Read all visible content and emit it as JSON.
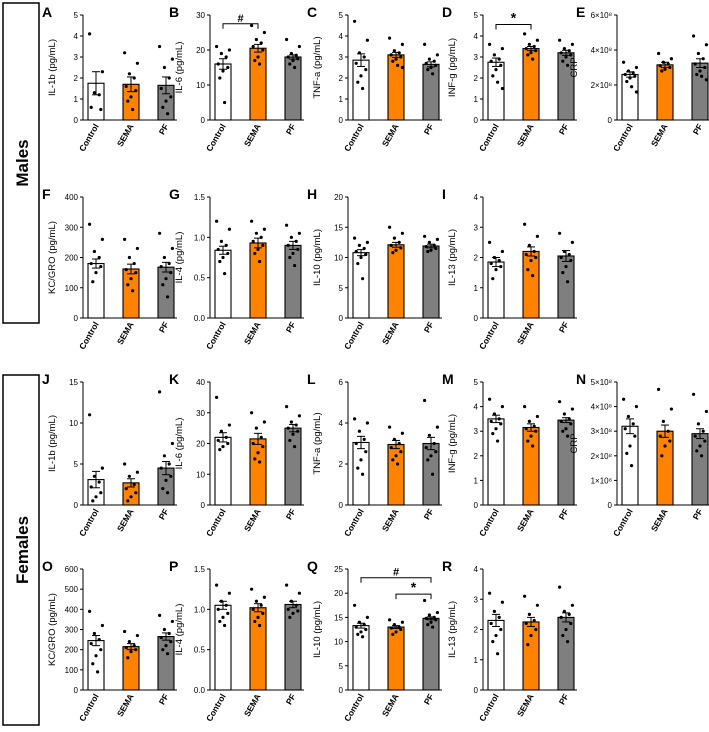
{
  "figure": {
    "groups": [
      {
        "label": "Males",
        "stroke": "#000000"
      },
      {
        "label": "Females",
        "stroke": "#000000"
      }
    ],
    "bar_colors": [
      "#ffffff",
      "#ff8200",
      "#7f7f7f"
    ]
  },
  "chart_data": [
    {
      "panel": "A",
      "type": "bar",
      "categories": [
        "Control",
        "SEMA",
        "PF"
      ],
      "values": [
        1.75,
        1.7,
        1.65
      ],
      "sem": [
        0.55,
        0.35,
        0.4
      ],
      "ylabel": "IL-1b (pg/mL)",
      "ylim": [
        0,
        5
      ],
      "yticks": [
        "0",
        "1",
        "2",
        "3",
        "4",
        "5"
      ],
      "points": [
        [
          4.1,
          2.3,
          1.3,
          1.2,
          0.6,
          0.5
        ],
        [
          3.2,
          2.7,
          2.2,
          2.0,
          1.6,
          1.4,
          1.1,
          0.9,
          0.5
        ],
        [
          3.5,
          2.9,
          2.5,
          2.0,
          1.5,
          1.1,
          0.9,
          0.6,
          0.3
        ]
      ]
    },
    {
      "panel": "B",
      "type": "bar",
      "categories": [
        "Control",
        "SEMA",
        "PF"
      ],
      "values": [
        16,
        20.5,
        18
      ],
      "sem": [
        1.5,
        1.1,
        0.6
      ],
      "ylabel": "IL-6 (pg/mL)",
      "ylim": [
        0,
        30
      ],
      "yticks": [
        "0",
        "10",
        "20",
        "30"
      ],
      "points": [
        [
          21,
          20,
          19,
          18,
          16,
          15,
          14,
          12,
          5
        ],
        [
          27,
          25,
          23,
          22,
          21,
          20,
          18,
          17,
          16
        ],
        [
          23,
          21,
          19,
          18.5,
          18,
          17.5,
          17,
          16,
          15
        ]
      ],
      "annotations": [
        {
          "text": "#",
          "from": 0,
          "to": 1,
          "y": 27.5
        }
      ]
    },
    {
      "panel": "C",
      "type": "bar",
      "categories": [
        "Control",
        "SEMA",
        "PF"
      ],
      "values": [
        2.85,
        3.1,
        2.65
      ],
      "sem": [
        0.3,
        0.12,
        0.12
      ],
      "ylabel": "TNF-a (pg/mL)",
      "ylim": [
        0,
        5
      ],
      "yticks": [
        "0",
        "1",
        "2",
        "3",
        "4",
        "5"
      ],
      "points": [
        [
          4.7,
          3.8,
          3.2,
          3.0,
          2.7,
          2.4,
          2.1,
          1.8,
          1.5
        ],
        [
          3.9,
          3.6,
          3.3,
          3.2,
          3.1,
          3.0,
          2.9,
          2.8,
          2.6,
          2.5
        ],
        [
          3.6,
          3.1,
          2.9,
          2.8,
          2.7,
          2.6,
          2.5,
          2.4,
          2.2
        ]
      ]
    },
    {
      "panel": "D",
      "type": "bar",
      "categories": [
        "Control",
        "SEMA",
        "PF"
      ],
      "values": [
        2.75,
        3.4,
        3.2
      ],
      "sem": [
        0.2,
        0.1,
        0.12
      ],
      "ylabel": "INF-g (pg/mL)",
      "ylim": [
        0,
        5
      ],
      "yticks": [
        "0",
        "1",
        "2",
        "3",
        "4",
        "5"
      ],
      "points": [
        [
          3.6,
          3.4,
          3.1,
          2.9,
          2.8,
          2.6,
          2.4,
          2.1,
          1.8,
          1.5
        ],
        [
          4.1,
          3.8,
          3.6,
          3.5,
          3.4,
          3.3,
          3.2,
          3.1,
          2.9
        ],
        [
          3.8,
          3.6,
          3.4,
          3.3,
          3.2,
          3.1,
          3.0,
          2.8,
          2.6
        ]
      ],
      "annotations": [
        {
          "text": "*",
          "from": 0,
          "to": 1,
          "y": 4.55
        }
      ]
    },
    {
      "panel": "E",
      "type": "bar",
      "categories": [
        "Control",
        "SEMA",
        "PF"
      ],
      "values": [
        260000000,
        315000000,
        325000000
      ],
      "sem": [
        15000000,
        15000000,
        25000000
      ],
      "ylabel": "CRP",
      "ylim": [
        0,
        600000000
      ],
      "yticks": [
        "0",
        "2×10⁸",
        "4×10⁸",
        "6×10⁸"
      ],
      "points": [
        [
          330000000,
          300000000,
          280000000,
          270000000,
          260000000,
          250000000,
          240000000,
          220000000,
          190000000,
          160000000
        ],
        [
          380000000,
          350000000,
          330000000,
          320000000,
          310000000,
          300000000,
          290000000,
          280000000
        ],
        [
          480000000,
          430000000,
          380000000,
          350000000,
          320000000,
          300000000,
          280000000,
          260000000,
          250000000,
          230000000
        ]
      ]
    },
    {
      "panel": "F",
      "type": "bar",
      "categories": [
        "Control",
        "SEMA",
        "PF"
      ],
      "values": [
        180,
        162,
        168
      ],
      "sem": [
        15,
        16,
        16
      ],
      "ylabel": "KC/GRO (pg/mL)",
      "ylim": [
        0,
        400
      ],
      "yticks": [
        "0",
        "100",
        "200",
        "300",
        "400"
      ],
      "points": [
        [
          310,
          260,
          220,
          200,
          180,
          170,
          150,
          120
        ],
        [
          260,
          230,
          200,
          180,
          160,
          150,
          130,
          110,
          90
        ],
        [
          280,
          230,
          200,
          180,
          170,
          150,
          130,
          110,
          70
        ]
      ]
    },
    {
      "panel": "G",
      "type": "bar",
      "categories": [
        "Control",
        "SEMA",
        "PF"
      ],
      "values": [
        0.84,
        0.93,
        0.9
      ],
      "sem": [
        0.05,
        0.06,
        0.05
      ],
      "ylabel": "IL-4 (pg/mL)",
      "ylim": [
        0,
        1.5
      ],
      "yticks": [
        "0.0",
        "0.5",
        "1.0",
        "1.5"
      ],
      "points": [
        [
          1.2,
          1.1,
          0.95,
          0.9,
          0.85,
          0.8,
          0.75,
          0.7,
          0.55
        ],
        [
          1.2,
          1.1,
          1.05,
          1.0,
          0.95,
          0.9,
          0.85,
          0.8,
          0.7
        ],
        [
          1.15,
          1.05,
          1.0,
          0.95,
          0.9,
          0.85,
          0.8,
          0.75,
          0.65
        ]
      ]
    },
    {
      "panel": "H",
      "type": "bar",
      "categories": [
        "Control",
        "SEMA",
        "PF"
      ],
      "values": [
        10.8,
        12.1,
        11.9
      ],
      "sem": [
        0.5,
        0.4,
        0.3
      ],
      "ylabel": "IL-10 (pg/mL)",
      "ylim": [
        0,
        20
      ],
      "yticks": [
        "0",
        "5",
        "10",
        "15",
        "20"
      ],
      "points": [
        [
          13.2,
          12.5,
          12.0,
          11.5,
          11.0,
          10.5,
          10.0,
          9.0,
          6.5
        ],
        [
          15.0,
          14.0,
          13.2,
          12.5,
          12.0,
          11.6,
          11.2,
          10.8
        ],
        [
          13.5,
          13.0,
          12.5,
          12.0,
          11.8,
          11.5,
          11.2,
          11.0
        ]
      ]
    },
    {
      "panel": "I",
      "type": "bar",
      "categories": [
        "Control",
        "SEMA",
        "PF"
      ],
      "values": [
        1.85,
        2.2,
        2.05
      ],
      "sem": [
        0.15,
        0.15,
        0.18
      ],
      "ylabel": "IL-13 (pg/mL)",
      "ylim": [
        0,
        4
      ],
      "yticks": [
        "0",
        "1",
        "2",
        "3",
        "4"
      ],
      "points": [
        [
          2.5,
          2.2,
          2.0,
          1.9,
          1.8,
          1.7,
          1.6,
          1.3
        ],
        [
          3.1,
          2.7,
          2.4,
          2.2,
          2.1,
          2.0,
          1.9,
          1.6,
          1.4
        ],
        [
          2.8,
          2.5,
          2.2,
          2.1,
          2.0,
          1.9,
          1.7,
          1.5,
          1.2
        ]
      ]
    },
    {
      "panel": "J",
      "type": "bar",
      "categories": [
        "Control",
        "SEMA",
        "PF"
      ],
      "values": [
        3.1,
        2.7,
        4.5
      ],
      "sem": [
        1.0,
        0.5,
        0.8
      ],
      "ylabel": "IL-1b (pg/mL)",
      "ylim": [
        0,
        15
      ],
      "yticks": [
        "0",
        "5",
        "10",
        "15"
      ],
      "points": [
        [
          11.0,
          4.5,
          3.5,
          2.8,
          2.2,
          1.5,
          1.0,
          0.5
        ],
        [
          5.0,
          4.0,
          3.5,
          2.5,
          2.0,
          1.5,
          1.0,
          0.5
        ],
        [
          13.8,
          7.5,
          6.0,
          5.0,
          4.5,
          3.5,
          3.0,
          2.0,
          1.5
        ]
      ]
    },
    {
      "panel": "K",
      "type": "bar",
      "categories": [
        "Control",
        "SEMA",
        "PF"
      ],
      "values": [
        22,
        21.5,
        25
      ],
      "sem": [
        1.5,
        1.8,
        1.2
      ],
      "ylabel": "IL-6 (pg/mL)",
      "ylim": [
        0,
        40
      ],
      "yticks": [
        "0",
        "10",
        "20",
        "30",
        "40"
      ],
      "points": [
        [
          35,
          26,
          24,
          22,
          21,
          20,
          19,
          18
        ],
        [
          30,
          27,
          25,
          22,
          20,
          19,
          17,
          15,
          14
        ],
        [
          32,
          29,
          27,
          26,
          25,
          24,
          23,
          21,
          19
        ]
      ]
    },
    {
      "panel": "L",
      "type": "bar",
      "categories": [
        "Control",
        "SEMA",
        "PF"
      ],
      "values": [
        3.05,
        2.95,
        3.0
      ],
      "sem": [
        0.3,
        0.2,
        0.3
      ],
      "ylabel": "TNF-a (pg/mL)",
      "ylim": [
        0,
        6
      ],
      "yticks": [
        "0",
        "2",
        "4",
        "6"
      ],
      "points": [
        [
          4.2,
          4.0,
          3.6,
          3.2,
          3.0,
          2.6,
          2.2,
          1.8,
          1.5
        ],
        [
          3.8,
          3.5,
          3.2,
          3.0,
          2.8,
          2.6,
          2.4,
          2.2,
          2.0
        ],
        [
          5.1,
          3.8,
          3.4,
          3.0,
          2.8,
          2.6,
          2.4,
          2.2,
          1.5
        ]
      ]
    },
    {
      "panel": "M",
      "type": "bar",
      "categories": [
        "Control",
        "SEMA",
        "PF"
      ],
      "values": [
        3.5,
        3.15,
        3.45
      ],
      "sem": [
        0.15,
        0.15,
        0.1
      ],
      "ylabel": "INF-g (pg/mL)",
      "ylim": [
        0,
        5
      ],
      "yticks": [
        "0",
        "1",
        "2",
        "3",
        "4",
        "5"
      ],
      "points": [
        [
          4.3,
          4.0,
          3.7,
          3.5,
          3.4,
          3.3,
          3.1,
          2.9,
          2.6
        ],
        [
          4.0,
          3.6,
          3.4,
          3.2,
          3.1,
          3.0,
          2.8,
          2.6,
          2.4
        ],
        [
          4.2,
          3.9,
          3.7,
          3.5,
          3.4,
          3.3,
          3.1,
          3.0,
          2.8
        ]
      ]
    },
    {
      "panel": "N",
      "type": "bar",
      "categories": [
        "Control",
        "SEMA",
        "PF"
      ],
      "values": [
        320000000,
        300000000,
        290000000
      ],
      "sem": [
        30000000,
        25000000,
        20000000
      ],
      "ylabel": "CRP",
      "ylim": [
        0,
        500000000
      ],
      "yticks": [
        "0",
        "1×10⁸",
        "2×10⁸",
        "3×10⁸",
        "4×10⁸",
        "5×10⁸"
      ],
      "points": [
        [
          430000000,
          400000000,
          360000000,
          330000000,
          310000000,
          280000000,
          240000000,
          210000000,
          160000000
        ],
        [
          470000000,
          390000000,
          340000000,
          300000000,
          280000000,
          260000000,
          240000000,
          200000000
        ],
        [
          450000000,
          380000000,
          330000000,
          300000000,
          280000000,
          260000000,
          240000000,
          220000000,
          200000000
        ]
      ]
    },
    {
      "panel": "O",
      "type": "bar",
      "categories": [
        "Control",
        "SEMA",
        "PF"
      ],
      "values": [
        245,
        215,
        265
      ],
      "sem": [
        25,
        15,
        18
      ],
      "ylabel": "KC/GRO (pg/mL)",
      "ylim": [
        0,
        600
      ],
      "yticks": [
        "0",
        "100",
        "200",
        "300",
        "400",
        "500",
        "600"
      ],
      "points": [
        [
          390,
          320,
          280,
          250,
          230,
          200,
          170,
          130,
          90
        ],
        [
          290,
          270,
          240,
          220,
          210,
          200,
          190,
          160
        ],
        [
          370,
          340,
          300,
          280,
          260,
          240,
          220,
          200,
          180
        ]
      ]
    },
    {
      "panel": "P",
      "type": "bar",
      "categories": [
        "Control",
        "SEMA",
        "PF"
      ],
      "values": [
        1.05,
        1.02,
        1.06
      ],
      "sem": [
        0.05,
        0.05,
        0.04
      ],
      "ylabel": "IL-4 (pg/mL)",
      "ylim": [
        0,
        1.5
      ],
      "yticks": [
        "0.0",
        "0.5",
        "1.0",
        "1.5"
      ],
      "points": [
        [
          1.3,
          1.2,
          1.1,
          1.05,
          1.0,
          0.95,
          0.9,
          0.85,
          0.8
        ],
        [
          1.25,
          1.15,
          1.1,
          1.05,
          1.0,
          0.95,
          0.9,
          0.85,
          0.8
        ],
        [
          1.3,
          1.2,
          1.1,
          1.05,
          1.0,
          0.98,
          0.95,
          0.9
        ]
      ]
    },
    {
      "panel": "Q",
      "type": "bar",
      "categories": [
        "Control",
        "SEMA",
        "PF"
      ],
      "values": [
        13.3,
        13.0,
        14.8
      ],
      "sem": [
        0.5,
        0.3,
        0.3
      ],
      "ylabel": "IL-10 (pg/mL)",
      "ylim": [
        0,
        25
      ],
      "yticks": [
        "0",
        "5",
        "10",
        "15",
        "20",
        "25"
      ],
      "points": [
        [
          17.5,
          15.0,
          14.0,
          13.5,
          13.0,
          12.5,
          12.0,
          11.5,
          11.0
        ],
        [
          14.5,
          14.0,
          13.5,
          13.0,
          12.8,
          12.5,
          12.0,
          11.5
        ],
        [
          18.5,
          16.0,
          15.5,
          15.0,
          14.8,
          14.5,
          14.0,
          13.5,
          13.0
        ]
      ],
      "annotations": [
        {
          "text": "#",
          "from": 0,
          "to": 2,
          "y": 23.2
        },
        {
          "text": "*",
          "from": 1,
          "to": 2,
          "y": 19.8
        }
      ]
    },
    {
      "panel": "R",
      "type": "bar",
      "categories": [
        "Control",
        "SEMA",
        "PF"
      ],
      "values": [
        2.3,
        2.25,
        2.4
      ],
      "sem": [
        0.2,
        0.15,
        0.15
      ],
      "ylabel": "IL-13 (pg/mL)",
      "ylim": [
        0,
        4
      ],
      "yticks": [
        "0",
        "1",
        "2",
        "3",
        "4"
      ],
      "points": [
        [
          3.2,
          2.9,
          2.6,
          2.4,
          2.2,
          2.0,
          1.8,
          1.6,
          1.2
        ],
        [
          3.1,
          2.8,
          2.5,
          2.3,
          2.2,
          2.0,
          1.8,
          1.5
        ],
        [
          3.4,
          2.8,
          2.6,
          2.5,
          2.4,
          2.2,
          2.0,
          1.8,
          1.6
        ]
      ]
    }
  ]
}
